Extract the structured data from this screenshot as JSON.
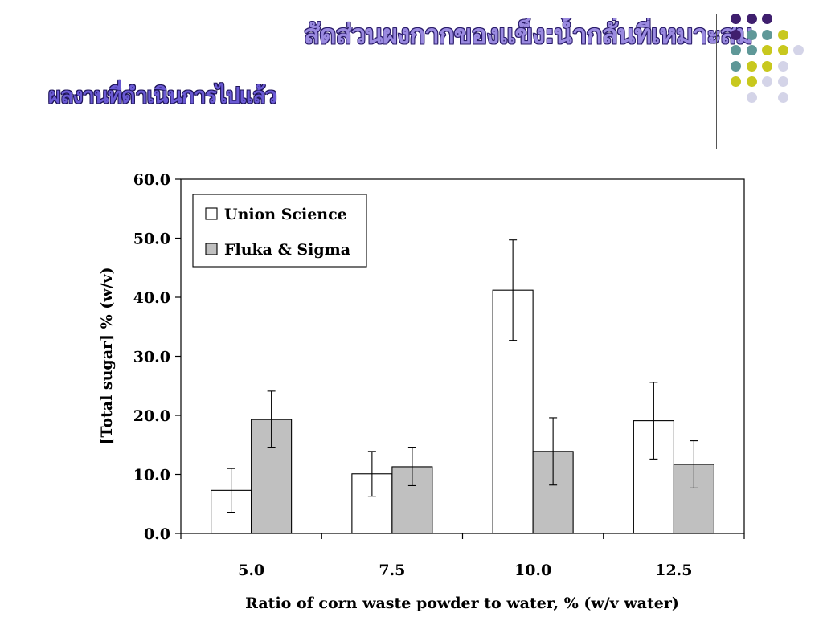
{
  "slide": {
    "title": "สัดส่วนผงกากของแข็ง:น้ำกลั่นที่เหมาะสม",
    "subtitle": "ผลงานที่ดำเนินการไปแล้ว"
  },
  "decor": {
    "dot_colors": {
      "purple": "#3f1f6e",
      "teal": "#5f9898",
      "yellow": "#c8c81e",
      "lavender": "#d4d4e8"
    },
    "dot_grid": [
      [
        "purple",
        "purple",
        "purple",
        null
      ],
      [
        "purple",
        "teal",
        "teal",
        "yellow"
      ],
      [
        "teal",
        "teal",
        "yellow",
        "yellow",
        "lavender"
      ],
      [
        "teal",
        "yellow",
        "yellow",
        "lavender"
      ],
      [
        "yellow",
        "yellow",
        "lavender",
        "lavender"
      ],
      [
        null,
        "lavender",
        null,
        "lavender"
      ]
    ]
  },
  "chart_data": {
    "type": "bar",
    "title": "",
    "xlabel": "Ratio of corn waste powder to water, % (w/v water)",
    "ylabel": "[Total sugar]  % (w/v)",
    "categories": [
      "5.0",
      "7.5",
      "10.0",
      "12.5"
    ],
    "ylim": [
      0,
      60
    ],
    "yticks": [
      "0.0",
      "10.0",
      "20.0",
      "30.0",
      "40.0",
      "50.0",
      "60.0"
    ],
    "yticks_values": [
      0,
      10,
      20,
      30,
      40,
      50,
      60
    ],
    "legend_position": "top-left",
    "grid": false,
    "series": [
      {
        "name": "Union Science",
        "color": "#ffffff",
        "values": [
          7.3,
          10.1,
          41.2,
          19.1
        ],
        "error": [
          3.7,
          3.8,
          8.5,
          6.5
        ]
      },
      {
        "name": "Fluka & Sigma",
        "color": "#c0c0c0",
        "values": [
          19.3,
          11.3,
          13.9,
          11.7
        ],
        "error": [
          4.8,
          3.2,
          5.7,
          4.0
        ]
      }
    ]
  }
}
